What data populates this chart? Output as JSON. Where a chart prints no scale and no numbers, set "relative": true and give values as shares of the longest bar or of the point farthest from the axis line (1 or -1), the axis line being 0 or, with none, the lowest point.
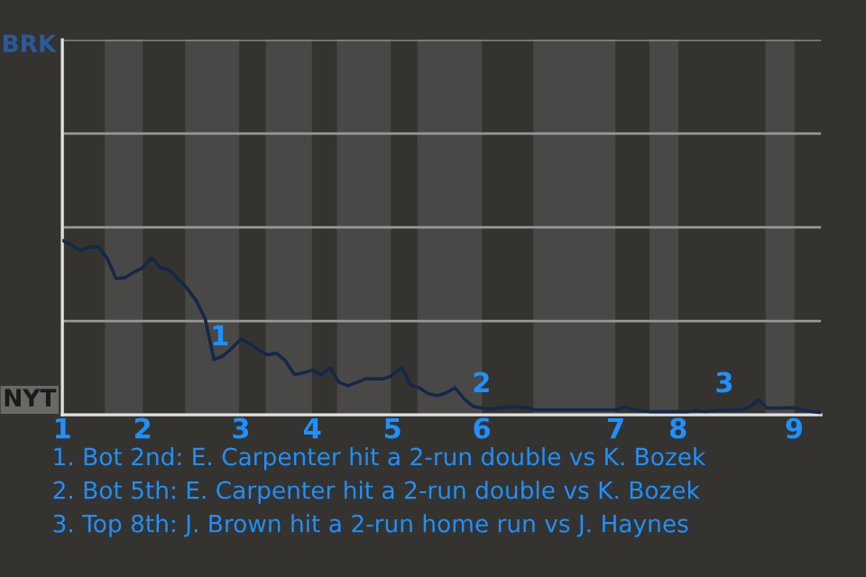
{
  "chart_data": {
    "type": "line",
    "relative": true,
    "ylim": [
      0,
      2.15
    ],
    "grid": "y",
    "categories": [
      "1",
      null,
      null,
      null,
      null,
      null,
      null,
      null,
      null,
      "2",
      null,
      null,
      null,
      null,
      null,
      null,
      null,
      null,
      null,
      null,
      "3",
      null,
      null,
      null,
      null,
      null,
      null,
      null,
      "4",
      null,
      null,
      null,
      null,
      null,
      null,
      null,
      null,
      "5",
      null,
      null,
      null,
      null,
      null,
      null,
      null,
      null,
      null,
      "6",
      null,
      null,
      null,
      null,
      null,
      null,
      null,
      null,
      null,
      null,
      null,
      null,
      null,
      null,
      "7",
      null,
      null,
      null,
      null,
      null,
      null,
      "8",
      null,
      null,
      null,
      null,
      null,
      null,
      null,
      null,
      null,
      null,
      null,
      null,
      "9",
      null,
      null,
      null
    ],
    "series": [
      {
        "color": "#14284a",
        "values": [
          1.0,
          0.975,
          0.941,
          0.962,
          0.965,
          0.9,
          0.782,
          0.786,
          0.817,
          0.843,
          0.9,
          0.844,
          0.83,
          0.776,
          0.724,
          0.654,
          0.551,
          0.317,
          0.337,
          0.383,
          0.434,
          0.409,
          0.372,
          0.344,
          0.353,
          0.31,
          0.231,
          0.241,
          0.256,
          0.231,
          0.269,
          0.186,
          0.167,
          0.186,
          0.207,
          0.207,
          0.207,
          0.227,
          0.272,
          0.173,
          0.155,
          0.121,
          0.111,
          0.126,
          0.155,
          0.093,
          0.049,
          0.038,
          0.033,
          0.04,
          0.044,
          0.044,
          0.041,
          0.028,
          0.028,
          0.028,
          0.028,
          0.028,
          0.028,
          0.028,
          0.028,
          0.028,
          0.028,
          0.045,
          0.031,
          0.023,
          0.018,
          0.018,
          0.018,
          0.018,
          0.018,
          0.025,
          0.019,
          0.024,
          0.028,
          0.028,
          0.028,
          0.045,
          0.086,
          0.038,
          0.039,
          0.04,
          0.041,
          0.028,
          0.019,
          0.013
        ],
        "marker": "none"
      }
    ],
    "annotations": [
      "BRK",
      "NYT",
      "1",
      "2",
      "3",
      "1. Bot 2nd: E. Carpenter hit a 2-run double vs K. Bozek",
      "2. Bot 5th: E. Carpenter hit a 2-run double vs K. Bozek",
      "3. Top 8th: J. Brown hit a 2-run home run vs J. Haynes"
    ]
  }
}
